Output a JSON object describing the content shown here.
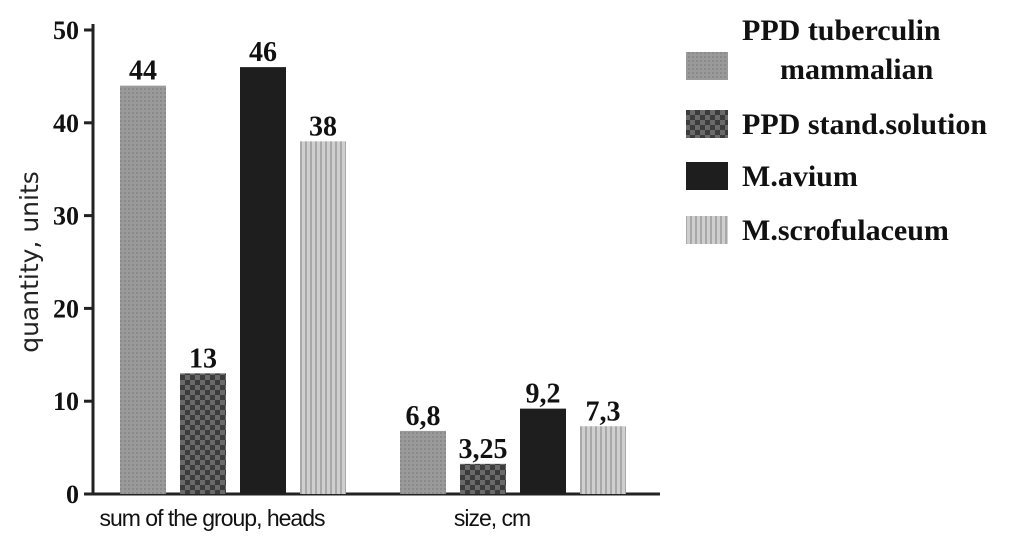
{
  "chart_data": {
    "type": "bar",
    "categories": [
      "sum of the group, heads",
      "size, cm"
    ],
    "ylabel": "quantity, units",
    "ylim": [
      0,
      50
    ],
    "yticks": [
      0,
      10,
      20,
      30,
      40,
      50
    ],
    "grid": false,
    "legend_position": "top-right",
    "series": [
      {
        "name": "PPD tuberculin mammalian",
        "legend_lines": [
          "PPD tuberculin",
          "mammalian"
        ],
        "values": [
          44,
          6.8
        ],
        "value_labels": [
          "44",
          "6,8"
        ],
        "color": "#9a9a9a",
        "pattern": "fine-dots"
      },
      {
        "name": "PPD stand.solution",
        "legend_lines": [
          "PPD stand.solution"
        ],
        "values": [
          13,
          3.25
        ],
        "value_labels": [
          "13",
          "3,25"
        ],
        "color": "#4a4a4a",
        "pattern": "checker"
      },
      {
        "name": "M.avium",
        "legend_lines": [
          "M.avium"
        ],
        "values": [
          46,
          9.2
        ],
        "value_labels": [
          "46",
          "9,2"
        ],
        "color": "#1e1e1e",
        "pattern": "solid"
      },
      {
        "name": "M.scrofulaceum",
        "legend_lines": [
          "M.scrofulaceum"
        ],
        "values": [
          38,
          7.3
        ],
        "value_labels": [
          "38",
          "7,3"
        ],
        "color": "#c4c4c4",
        "pattern": "vertical-lines"
      }
    ]
  }
}
